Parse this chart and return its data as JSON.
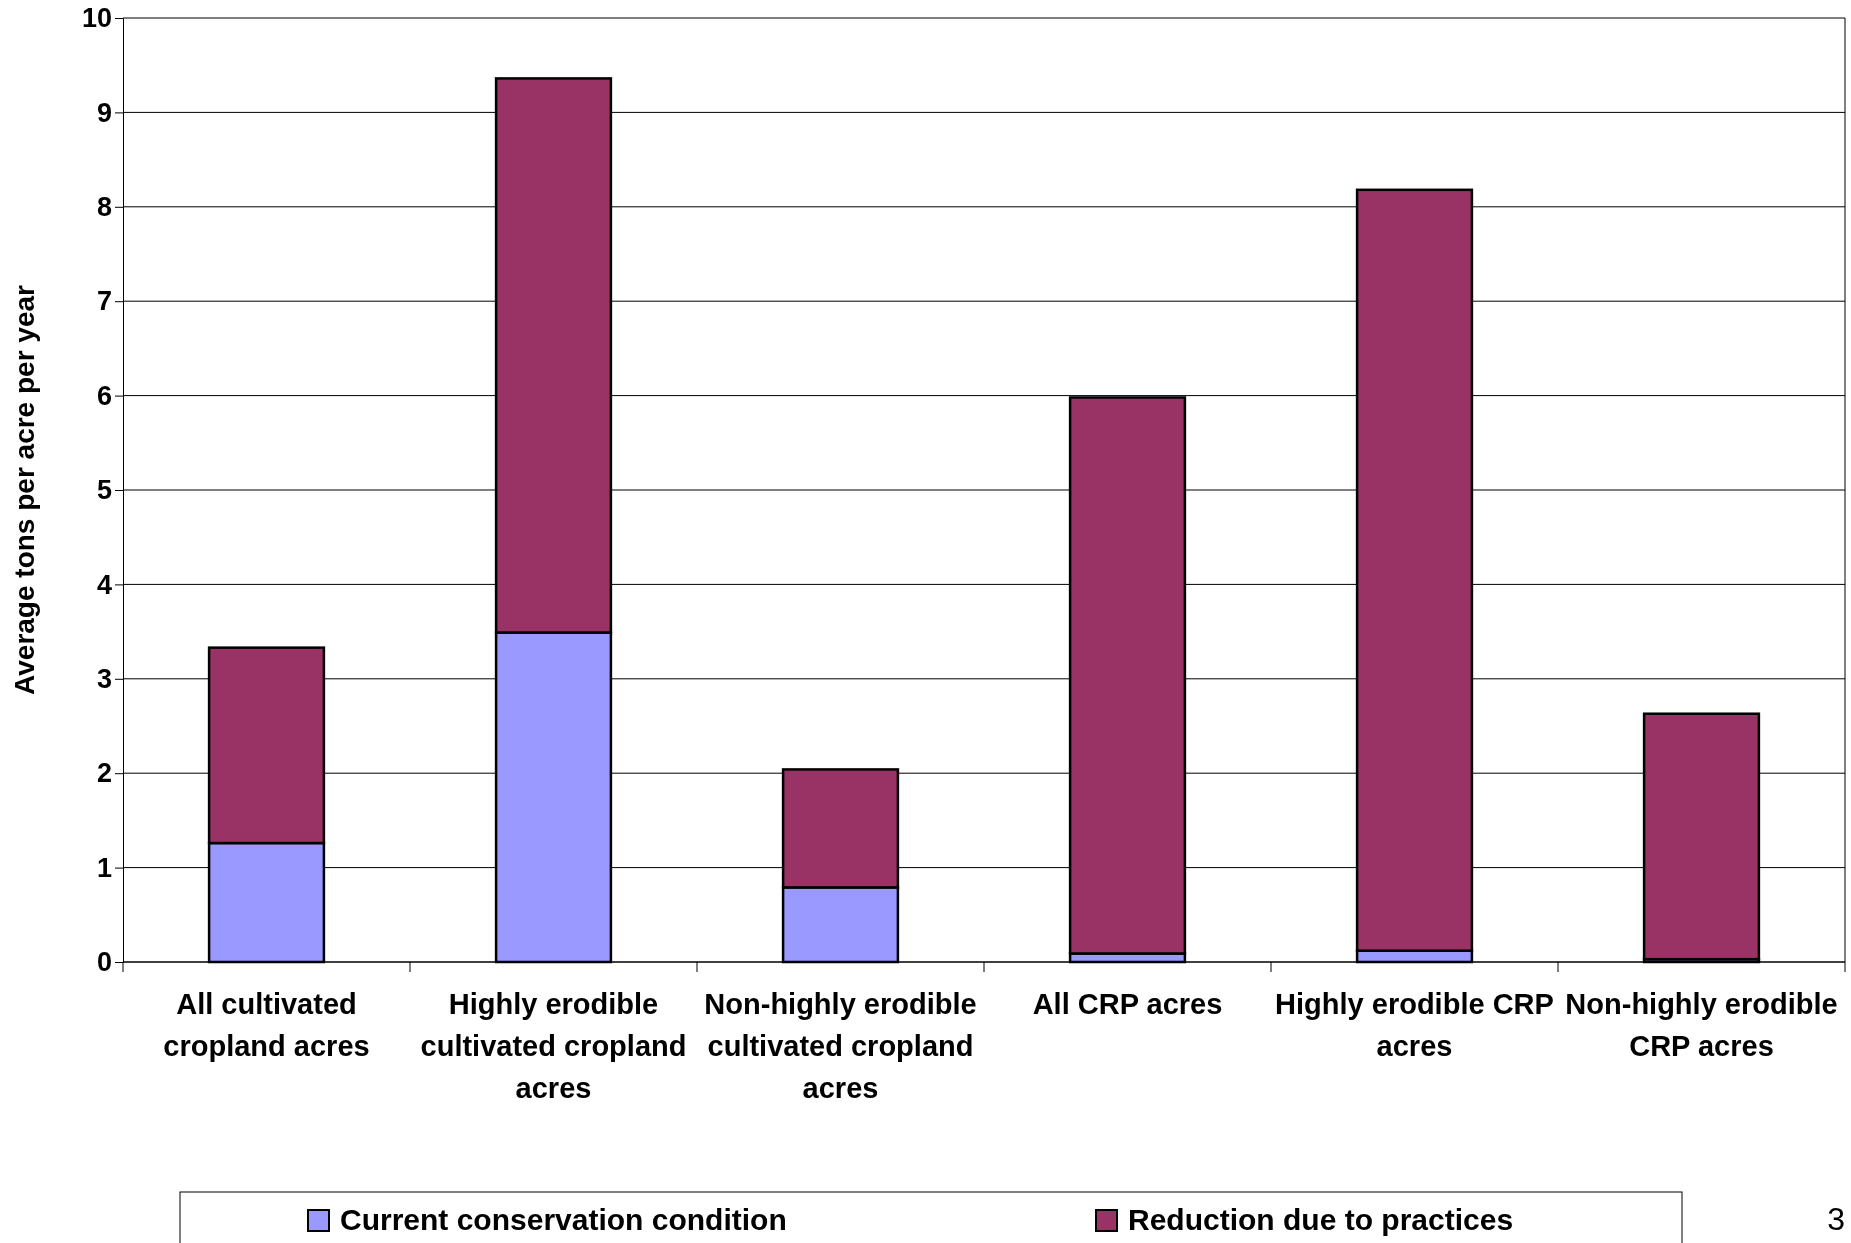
{
  "chart_data": {
    "type": "bar",
    "stacked": true,
    "ylabel": "Average tons per acre per year",
    "categories": [
      "All cultivated cropland acres",
      "Highly erodible cultivated cropland acres",
      "Non-highly erodible cultivated cropland acres",
      "All CRP acres",
      "Highly erodible CRP acres",
      "Non-highly erodible CRP acres"
    ],
    "series": [
      {
        "name": "Current conservation condition",
        "color": "#9999ff",
        "values": [
          1.26,
          3.49,
          0.79,
          0.09,
          0.12,
          0.03
        ]
      },
      {
        "name": "Reduction due to practices",
        "color": "#993366",
        "values": [
          2.07,
          5.87,
          1.25,
          5.89,
          8.06,
          2.6
        ]
      }
    ],
    "ylim": [
      0,
      10
    ],
    "yticks": [
      0,
      1,
      2,
      3,
      4,
      5,
      6,
      7,
      8,
      9,
      10
    ],
    "grid": "y",
    "legend": "bottom",
    "annotations": [
      "3"
    ]
  }
}
